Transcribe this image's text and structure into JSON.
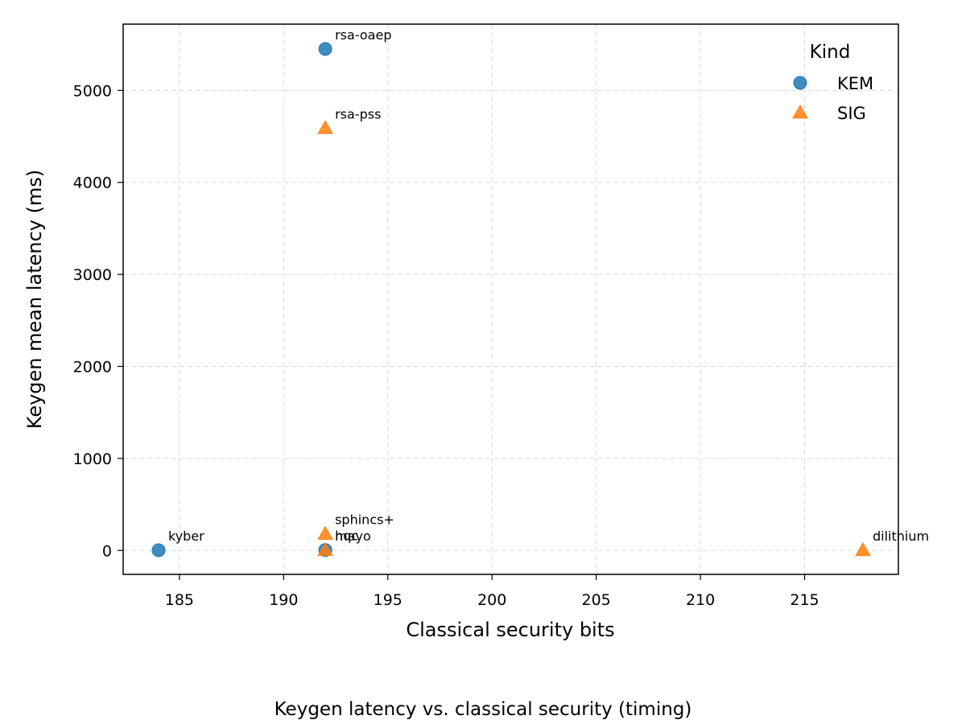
{
  "chart_data": {
    "type": "scatter",
    "title": "",
    "caption": "Keygen latency vs. classical security (timing)",
    "xlabel": "Classical security bits",
    "ylabel": "Keygen mean latency (ms)",
    "xlim": [
      182.3,
      219.5
    ],
    "ylim": [
      -260,
      5720
    ],
    "xticks": [
      185,
      190,
      195,
      200,
      205,
      210,
      215
    ],
    "yticks": [
      0,
      1000,
      2000,
      3000,
      4000,
      5000
    ],
    "grid": true,
    "legend": {
      "title": "Kind",
      "placement": "top-right",
      "entries": [
        {
          "name": "KEM",
          "marker": "circle",
          "color": "#1f77b4"
        },
        {
          "name": "SIG",
          "marker": "triangle",
          "color": "#ff7f0e"
        }
      ]
    },
    "series": [
      {
        "name": "KEM",
        "marker": "circle",
        "color": "#1f77b4",
        "points": [
          {
            "x": 184,
            "y": 2,
            "label": "kyber"
          },
          {
            "x": 192,
            "y": 5450,
            "label": "rsa-oaep"
          },
          {
            "x": 192,
            "y": 5,
            "label": "hqc"
          }
        ]
      },
      {
        "name": "SIG",
        "marker": "triangle",
        "color": "#ff7f0e",
        "points": [
          {
            "x": 192,
            "y": 4590,
            "label": "rsa-pss"
          },
          {
            "x": 192,
            "y": 180,
            "label": "sphincs+"
          },
          {
            "x": 192,
            "y": 3,
            "label": "mayo"
          },
          {
            "x": 217.8,
            "y": 2,
            "label": "dilithium"
          }
        ]
      }
    ]
  }
}
